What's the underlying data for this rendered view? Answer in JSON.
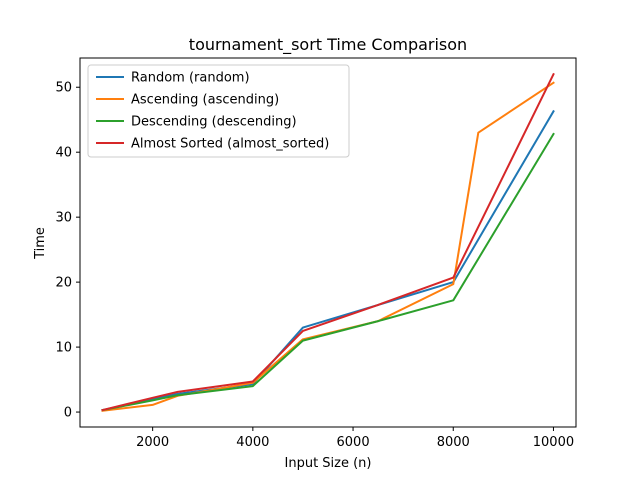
{
  "chart_data": {
    "type": "line",
    "title": "tournament_sort Time Comparison",
    "xlabel": "Input Size (n)",
    "ylabel": "Time",
    "xlim": [
      550,
      10450
    ],
    "ylim": [
      -2.3,
      54.5
    ],
    "xticks": [
      2000,
      4000,
      6000,
      8000,
      10000
    ],
    "yticks": [
      0,
      10,
      20,
      30,
      40,
      50
    ],
    "grid": false,
    "legend_position": "upper-left",
    "series": [
      {
        "name": "Random (random)",
        "color": "#1f77b4",
        "x": [
          1000,
          2000,
          2500,
          4000,
          5000,
          6500,
          8000,
          10000
        ],
        "y": [
          0.3,
          2.0,
          2.8,
          4.3,
          13.0,
          16.5,
          20.0,
          46.3
        ]
      },
      {
        "name": "Ascending (ascending)",
        "color": "#ff7f0e",
        "x": [
          1000,
          2000,
          2500,
          4000,
          5000,
          6500,
          8000,
          8500,
          10000
        ],
        "y": [
          0.2,
          1.1,
          2.5,
          4.5,
          11.2,
          14.0,
          19.7,
          43.0,
          50.7
        ]
      },
      {
        "name": "Descending (descending)",
        "color": "#2ca02c",
        "x": [
          1000,
          2000,
          2500,
          4000,
          5000,
          6500,
          8000,
          10000
        ],
        "y": [
          0.3,
          1.8,
          2.6,
          4.0,
          11.0,
          14.0,
          17.2,
          42.8
        ]
      },
      {
        "name": "Almost Sorted (almost_sorted)",
        "color": "#d62728",
        "x": [
          1000,
          2000,
          2500,
          4000,
          5000,
          6500,
          8000,
          10000
        ],
        "y": [
          0.3,
          2.2,
          3.1,
          4.7,
          12.5,
          16.5,
          20.7,
          52.0
        ]
      }
    ]
  }
}
